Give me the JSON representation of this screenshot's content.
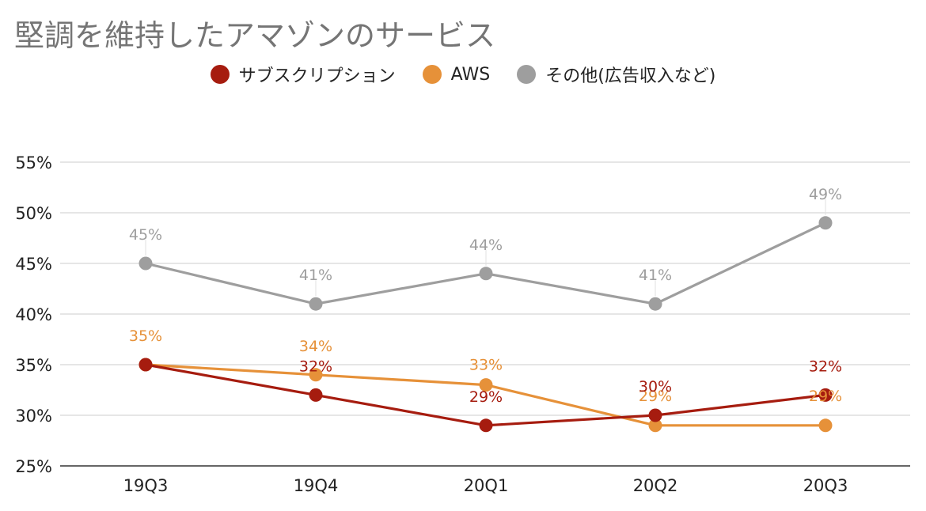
{
  "chart_data": {
    "type": "line",
    "title": "堅調を維持したアマゾンのサービス",
    "categories": [
      "19Q3",
      "19Q4",
      "20Q1",
      "20Q2",
      "20Q3"
    ],
    "ylim": [
      25,
      55
    ],
    "yticks": [
      25,
      30,
      35,
      40,
      45,
      50,
      55
    ],
    "ytick_labels": [
      "25%",
      "30%",
      "35%",
      "40%",
      "45%",
      "50%",
      "55%"
    ],
    "grid": true,
    "legend_position": "top",
    "series": [
      {
        "name": "サブスクリプション",
        "color": "#a61c0f",
        "values": [
          35,
          32,
          29,
          30,
          32
        ],
        "labels": [
          "",
          "32%",
          "29%",
          "30%",
          "32%"
        ]
      },
      {
        "name": "AWS",
        "color": "#e69139",
        "values": [
          35,
          34,
          33,
          29,
          29
        ],
        "labels": [
          "35%",
          "34%",
          "33%",
          "29%",
          "29%"
        ]
      },
      {
        "name": "その他(広告収入など)",
        "color": "#9e9e9e",
        "values": [
          45,
          41,
          44,
          41,
          49
        ],
        "labels": [
          "45%",
          "41%",
          "44%",
          "41%",
          "49%"
        ]
      }
    ]
  }
}
